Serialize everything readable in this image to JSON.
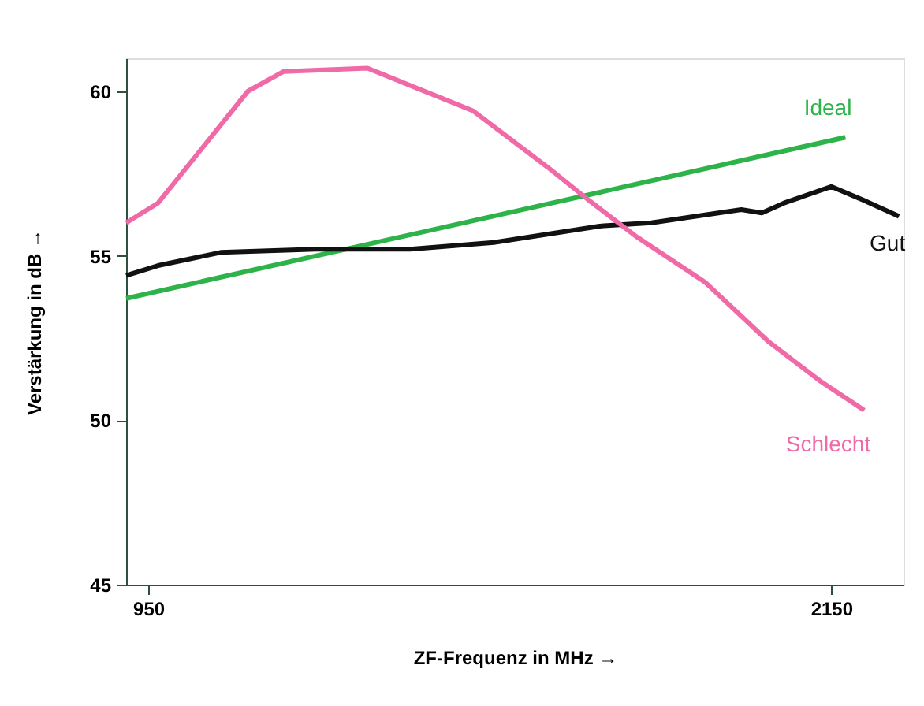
{
  "chart_data": {
    "type": "line",
    "xlabel": "ZF-Frequenz  in MHz  →",
    "ylabel": "Verstärkung in dB  →",
    "xlim": [
      911,
      2277
    ],
    "xticks": [
      950,
      2150
    ],
    "ylim": [
      45,
      61
    ],
    "yticks": [
      45,
      50,
      55,
      60
    ],
    "grid": false,
    "legend": false,
    "marker": "none",
    "line_style": "solid",
    "series": [
      {
        "name": "Ideal",
        "color": "#2db34a",
        "x": [
          911,
          2175
        ],
        "values": [
          53.7,
          58.6
        ]
      },
      {
        "name": "Gut",
        "color": "#111111",
        "x": [
          911,
          967,
          1077,
          1244,
          1410,
          1557,
          1743,
          1834,
          1992,
          2028,
          2067,
          2150,
          2205,
          2269
        ],
        "values": [
          54.4,
          54.7,
          55.1,
          55.2,
          55.2,
          55.4,
          55.9,
          56.0,
          56.4,
          56.3,
          56.6,
          57.1,
          56.7,
          56.2
        ]
      },
      {
        "name": "Schlecht",
        "color": "#f06aa8",
        "x": [
          911,
          967,
          1125,
          1188,
          1335,
          1521,
          1651,
          1723,
          1806,
          1928,
          2039,
          2130,
          2208
        ],
        "values": [
          56.0,
          56.6,
          60.0,
          60.6,
          60.7,
          59.4,
          57.7,
          56.7,
          55.6,
          54.2,
          52.4,
          51.2,
          50.3
        ]
      }
    ]
  }
}
